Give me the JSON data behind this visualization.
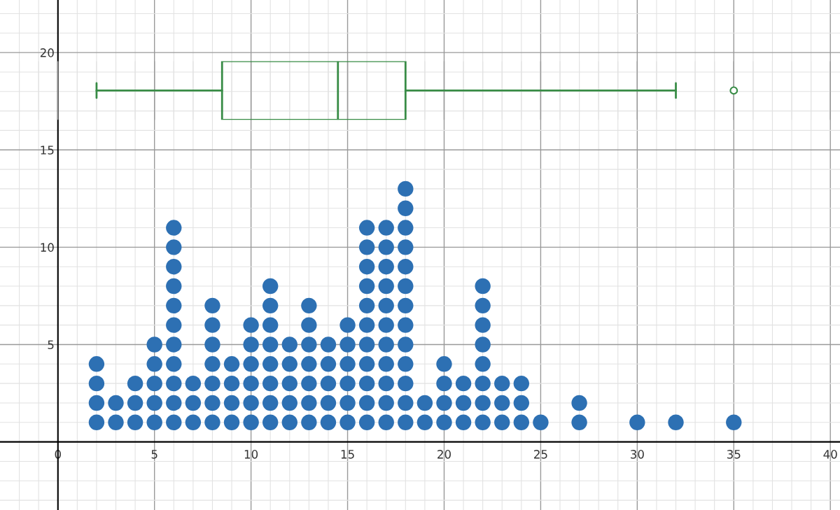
{
  "chart_data": [
    {
      "type": "box",
      "orientation": "horizontal",
      "color": "#388c46",
      "categories": [
        null
      ],
      "xlim": [
        -3,
        40.5
      ],
      "tick_labels": false,
      "grid": "x",
      "xticks": [
        {
          "value": -2,
          "label": null
        },
        {
          "value": -1,
          "label": null
        },
        0,
        {
          "value": 1,
          "label": null
        },
        {
          "value": 2,
          "label": null
        },
        {
          "value": 3,
          "label": null
        },
        {
          "value": 4,
          "label": null
        },
        5,
        {
          "value": 6,
          "label": null
        },
        {
          "value": 7,
          "label": null
        },
        {
          "value": 8,
          "label": null
        },
        {
          "value": 9,
          "label": null
        },
        10,
        {
          "value": 11,
          "label": null
        },
        {
          "value": 12,
          "label": null
        },
        {
          "value": 13,
          "label": null
        },
        {
          "value": 14,
          "label": null
        },
        15,
        {
          "value": 16,
          "label": null
        },
        {
          "value": 17,
          "label": null
        },
        {
          "value": 18,
          "label": null
        },
        {
          "value": 19,
          "label": null
        },
        20,
        {
          "value": 21,
          "label": null
        },
        {
          "value": 22,
          "label": null
        },
        {
          "value": 23,
          "label": null
        },
        {
          "value": 24,
          "label": null
        },
        25,
        {
          "value": 26,
          "label": null
        },
        {
          "value": 27,
          "label": null
        },
        {
          "value": 28,
          "label": null
        },
        {
          "value": 29,
          "label": null
        },
        30,
        {
          "value": 31,
          "label": null
        },
        {
          "value": 32,
          "label": null
        },
        {
          "value": 33,
          "label": null
        },
        {
          "value": 34,
          "label": null
        },
        35,
        {
          "value": 36,
          "label": null
        },
        {
          "value": 37,
          "label": null
        },
        {
          "value": 38,
          "label": null
        },
        {
          "value": 39,
          "label": null
        },
        40
      ],
      "boxes": [
        {
          "low": 2,
          "q1": 8.5,
          "median": 14.5,
          "q3": 18,
          "high": 32,
          "outliers": [
            35
          ]
        }
      ]
    },
    {
      "type": "scatter",
      "xlim": [
        -3,
        40.5
      ],
      "ylim": [
        -3.5,
        22.7
      ],
      "xticks": [
        {
          "value": -2,
          "label": null
        },
        {
          "value": -1,
          "label": null
        },
        0,
        {
          "value": 1,
          "label": null
        },
        {
          "value": 2,
          "label": null
        },
        {
          "value": 3,
          "label": null
        },
        {
          "value": 4,
          "label": null
        },
        5,
        {
          "value": 6,
          "label": null
        },
        {
          "value": 7,
          "label": null
        },
        {
          "value": 8,
          "label": null
        },
        {
          "value": 9,
          "label": null
        },
        10,
        {
          "value": 11,
          "label": null
        },
        {
          "value": 12,
          "label": null
        },
        {
          "value": 13,
          "label": null
        },
        {
          "value": 14,
          "label": null
        },
        15,
        {
          "value": 16,
          "label": null
        },
        {
          "value": 17,
          "label": null
        },
        {
          "value": 18,
          "label": null
        },
        {
          "value": 19,
          "label": null
        },
        20,
        {
          "value": 21,
          "label": null
        },
        {
          "value": 22,
          "label": null
        },
        {
          "value": 23,
          "label": null
        },
        {
          "value": 24,
          "label": null
        },
        25,
        {
          "value": 26,
          "label": null
        },
        {
          "value": 27,
          "label": null
        },
        {
          "value": 28,
          "label": null
        },
        {
          "value": 29,
          "label": null
        },
        30,
        {
          "value": 31,
          "label": null
        },
        {
          "value": 32,
          "label": null
        },
        {
          "value": 33,
          "label": null
        },
        {
          "value": 34,
          "label": null
        },
        35,
        {
          "value": 36,
          "label": null
        },
        {
          "value": 37,
          "label": null
        },
        {
          "value": 38,
          "label": null
        },
        {
          "value": 39,
          "label": null
        },
        40
      ],
      "yticks": [
        {
          "value": -3,
          "label": null
        },
        {
          "value": -2,
          "label": null
        },
        {
          "value": -1,
          "label": null
        },
        {
          "value": 1,
          "label": null
        },
        {
          "value": 2,
          "label": null
        },
        {
          "value": 3,
          "label": null
        },
        {
          "value": 4,
          "label": null
        },
        5,
        {
          "value": 6,
          "label": null
        },
        {
          "value": 7,
          "label": null
        },
        {
          "value": 8,
          "label": null
        },
        {
          "value": 9,
          "label": null
        },
        10,
        {
          "value": 11,
          "label": null
        },
        {
          "value": 12,
          "label": null
        },
        {
          "value": 13,
          "label": null
        },
        {
          "value": 14,
          "label": null
        },
        15,
        {
          "value": 16,
          "label": null
        },
        {
          "value": 17,
          "label": null
        },
        {
          "value": 18,
          "label": null
        },
        {
          "value": 19,
          "label": null
        },
        20,
        {
          "value": 21,
          "label": null
        },
        {
          "value": 22,
          "label": null
        }
      ],
      "grid": true,
      "marker": "circle",
      "series": [
        {
          "color": "#2d70b3",
          "x": [
            2,
            2,
            2,
            2,
            3,
            3,
            4,
            4,
            4,
            5,
            5,
            5,
            5,
            5,
            6,
            6,
            6,
            6,
            6,
            6,
            6,
            6,
            6,
            6,
            6,
            7,
            7,
            7,
            8,
            8,
            8,
            8,
            8,
            8,
            8,
            9,
            9,
            9,
            9,
            10,
            10,
            10,
            10,
            10,
            10,
            11,
            11,
            11,
            11,
            11,
            11,
            11,
            11,
            12,
            12,
            12,
            12,
            12,
            13,
            13,
            13,
            13,
            13,
            13,
            13,
            14,
            14,
            14,
            14,
            14,
            15,
            15,
            15,
            15,
            15,
            15,
            16,
            16,
            16,
            16,
            16,
            16,
            16,
            16,
            16,
            16,
            16,
            17,
            17,
            17,
            17,
            17,
            17,
            17,
            17,
            17,
            17,
            17,
            18,
            18,
            18,
            18,
            18,
            18,
            18,
            18,
            18,
            18,
            18,
            18,
            18,
            19,
            19,
            20,
            20,
            20,
            20,
            21,
            21,
            21,
            22,
            22,
            22,
            22,
            22,
            22,
            22,
            22,
            23,
            23,
            23,
            24,
            24,
            24,
            25,
            27,
            27,
            30,
            32,
            35
          ],
          "values": [
            1,
            2,
            3,
            4,
            1,
            2,
            1,
            2,
            3,
            1,
            2,
            3,
            4,
            5,
            1,
            2,
            3,
            4,
            5,
            6,
            7,
            8,
            9,
            10,
            11,
            1,
            2,
            3,
            1,
            2,
            3,
            4,
            5,
            6,
            7,
            1,
            2,
            3,
            4,
            1,
            2,
            3,
            4,
            5,
            6,
            1,
            2,
            3,
            4,
            5,
            6,
            7,
            8,
            1,
            2,
            3,
            4,
            5,
            1,
            2,
            3,
            4,
            5,
            6,
            7,
            1,
            2,
            3,
            4,
            5,
            1,
            2,
            3,
            4,
            5,
            6,
            1,
            2,
            3,
            4,
            5,
            6,
            7,
            8,
            9,
            10,
            11,
            1,
            2,
            3,
            4,
            5,
            6,
            7,
            8,
            9,
            10,
            11,
            1,
            2,
            3,
            4,
            5,
            6,
            7,
            8,
            9,
            10,
            11,
            12,
            13,
            1,
            2,
            1,
            2,
            3,
            4,
            1,
            2,
            3,
            1,
            2,
            3,
            4,
            5,
            6,
            7,
            8,
            1,
            2,
            3,
            1,
            2,
            3,
            1,
            1,
            2,
            1,
            1,
            1
          ]
        }
      ]
    }
  ]
}
